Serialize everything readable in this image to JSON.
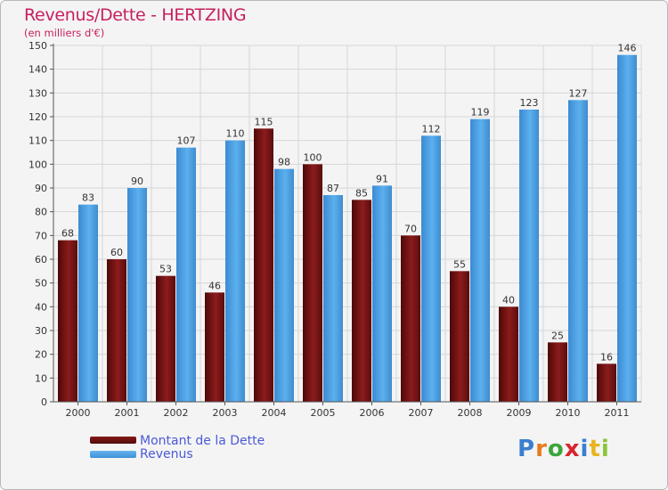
{
  "header": {
    "title": "Revenus/Dette - HERTZING",
    "subtitle": "(en milliers d'€)"
  },
  "legend": {
    "items": [
      "Montant de la Dette",
      "Revenus"
    ]
  },
  "logo": {
    "letters": [
      "P",
      "r",
      "o",
      "x",
      "i",
      "t",
      "i"
    ],
    "colors": [
      "#3a7fd0",
      "#e87a1e",
      "#3aa63a",
      "#d8262e",
      "#3a7fd0",
      "#e8b41e",
      "#8bc43a"
    ]
  },
  "chart_data": {
    "type": "bar",
    "title": "Revenus/Dette - HERTZING",
    "subtitle": "(en milliers d'€)",
    "categories": [
      "2000",
      "2001",
      "2002",
      "2003",
      "2004",
      "2005",
      "2006",
      "2007",
      "2008",
      "2009",
      "2010",
      "2011"
    ],
    "series": [
      {
        "name": "Montant de la Dette",
        "values": [
          68,
          60,
          53,
          46,
          115,
          100,
          85,
          70,
          55,
          40,
          25,
          16
        ],
        "color": "#7a1414"
      },
      {
        "name": "Revenus",
        "values": [
          83,
          90,
          107,
          110,
          98,
          87,
          91,
          112,
          119,
          123,
          127,
          146
        ],
        "color": "#4a9ee6"
      }
    ],
    "ylim": [
      0,
      150
    ],
    "yticks": [
      0,
      10,
      20,
      30,
      40,
      50,
      60,
      70,
      80,
      90,
      100,
      110,
      120,
      130,
      140,
      150
    ],
    "grid": true,
    "legend_position": "bottom-left"
  }
}
